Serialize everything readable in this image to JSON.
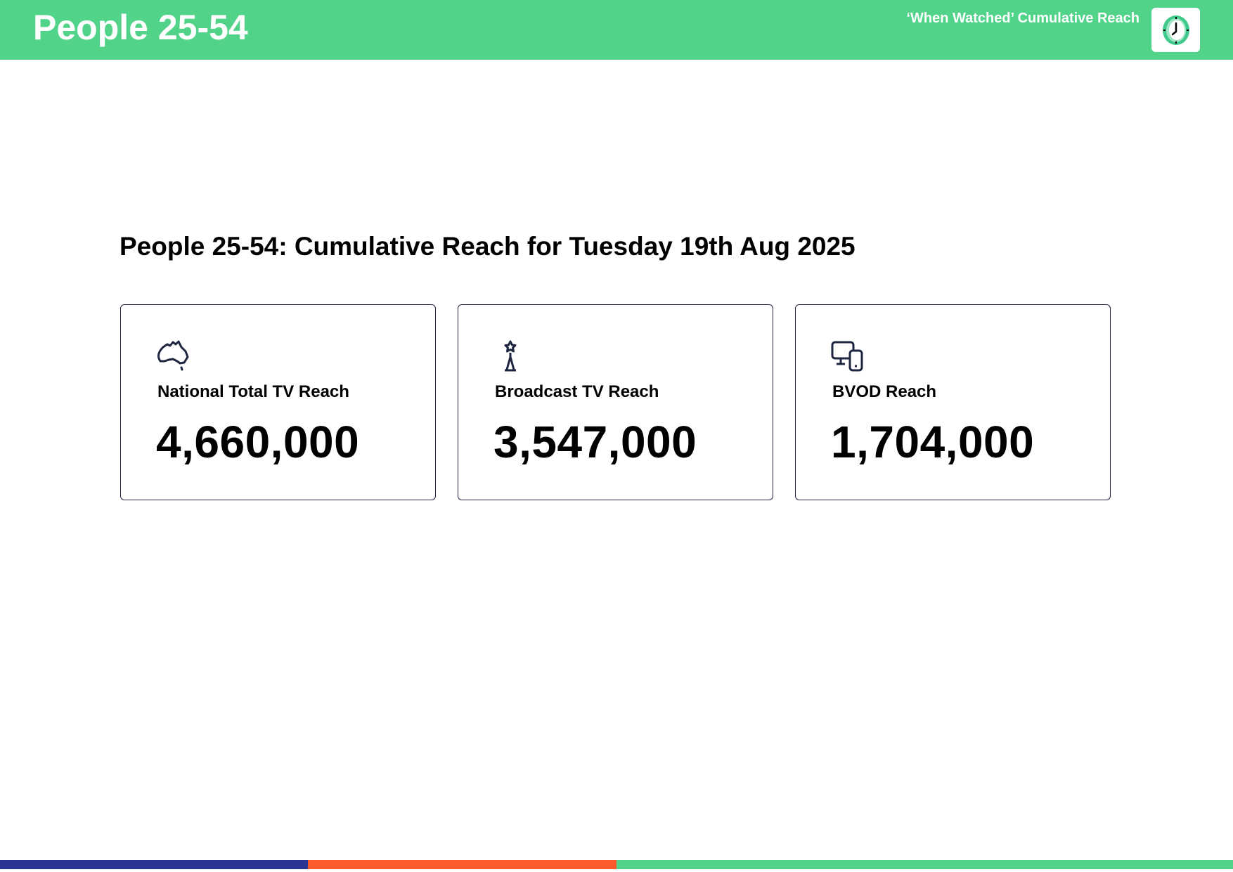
{
  "header": {
    "title": "People 25-54",
    "subtitle": "‘When Watched’ Cumulative Reach",
    "icon": "clock-icon"
  },
  "main": {
    "heading": "People 25-54: Cumulative Reach for Tuesday 19th Aug 2025",
    "cards": [
      {
        "label": "National Total TV Reach",
        "value": "4,660,000",
        "icon": "australia-map-icon"
      },
      {
        "label": "Broadcast TV Reach",
        "value": "3,547,000",
        "icon": "broadcast-tower-icon"
      },
      {
        "label": "BVOD Reach",
        "value": "1,704,000",
        "icon": "devices-icon"
      }
    ]
  },
  "colors": {
    "green": "#51D48A",
    "blue": "#2B3592",
    "orange": "#FF5A2B",
    "dark": "#1E2540"
  }
}
